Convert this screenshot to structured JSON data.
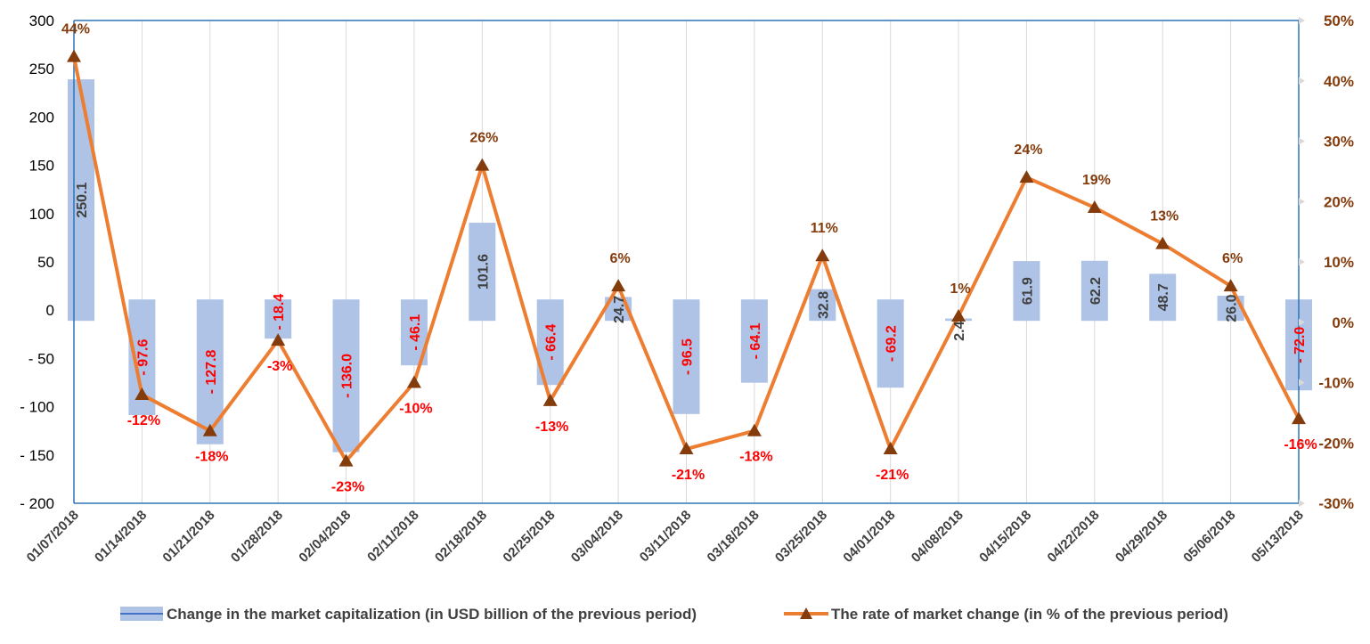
{
  "chart_data": {
    "type": "bar+line",
    "categories": [
      "01/07/2018",
      "01/14/2018",
      "01/21/2018",
      "01/28/2018",
      "02/04/2018",
      "02/11/2018",
      "02/18/2018",
      "02/25/2018",
      "03/04/2018",
      "03/11/2018",
      "03/18/2018",
      "03/25/2018",
      "04/01/2018",
      "04/08/2018",
      "04/15/2018",
      "04/22/2018",
      "04/29/2018",
      "05/06/2018",
      "05/13/2018"
    ],
    "series": [
      {
        "name": "Change in the market capitalization  (in USD billion of the previous period)",
        "type": "bar",
        "axis": "left",
        "values": [
          250.1,
          -97.6,
          -127.8,
          -18.4,
          -136.0,
          -46.1,
          101.6,
          -66.4,
          24.7,
          -96.5,
          -64.1,
          32.8,
          -69.2,
          2.4,
          61.9,
          62.2,
          48.7,
          26.0,
          -72.0
        ],
        "labels": [
          "250.1",
          "- 97.6",
          "- 127.8",
          "- 18.4",
          "- 136.0",
          "- 46.1",
          "101.6",
          "- 66.4",
          "24.7",
          "- 96.5",
          "- 64.1",
          "32.8",
          "- 69.2",
          "2.4",
          "61.9",
          "62.2",
          "48.7",
          "26.0",
          "- 72.0"
        ],
        "color": "#aec3e6"
      },
      {
        "name": "The rate of market change (in % of the previous period)",
        "type": "line",
        "axis": "right",
        "values": [
          44,
          -12,
          -18,
          -3,
          -23,
          -10,
          26,
          -13,
          6,
          -21,
          -18,
          11,
          -21,
          1,
          24,
          19,
          13,
          6,
          -16
        ],
        "labels": [
          "44%",
          "-12%",
          "-18%",
          "-3%",
          "-23%",
          "-10%",
          "26%",
          "-13%",
          "6%",
          "-21%",
          "-18%",
          "11%",
          "-21%",
          "1%",
          "24%",
          "19%",
          "13%",
          "6%",
          "-16%"
        ],
        "color": "#ed7d31",
        "marker_color": "#843c0c"
      }
    ],
    "y_left": {
      "ticks": [
        "300",
        "250",
        "200",
        "150",
        "100",
        "50",
        "0",
        "- 50",
        "- 100",
        "- 150",
        "- 200"
      ],
      "values": [
        300,
        250,
        200,
        150,
        100,
        50,
        0,
        -50,
        -100,
        -150,
        -200
      ],
      "range": [
        -200,
        300
      ]
    },
    "y_right": {
      "ticks": [
        "50%",
        "40%",
        "30%",
        "20%",
        "10%",
        "0%",
        "-10%",
        "-20%",
        "-30%"
      ],
      "values": [
        50,
        40,
        30,
        20,
        10,
        0,
        -10,
        -20,
        -30
      ],
      "range": [
        -30,
        50
      ]
    },
    "grid": "vertical",
    "legend_position": "bottom",
    "colors": {
      "positive_label": "#404040",
      "negative_label": "#ff0000",
      "pct_label_positive": "#843c0c",
      "axis_line": "#2e75b6",
      "grid": "#d9d9d9"
    }
  }
}
